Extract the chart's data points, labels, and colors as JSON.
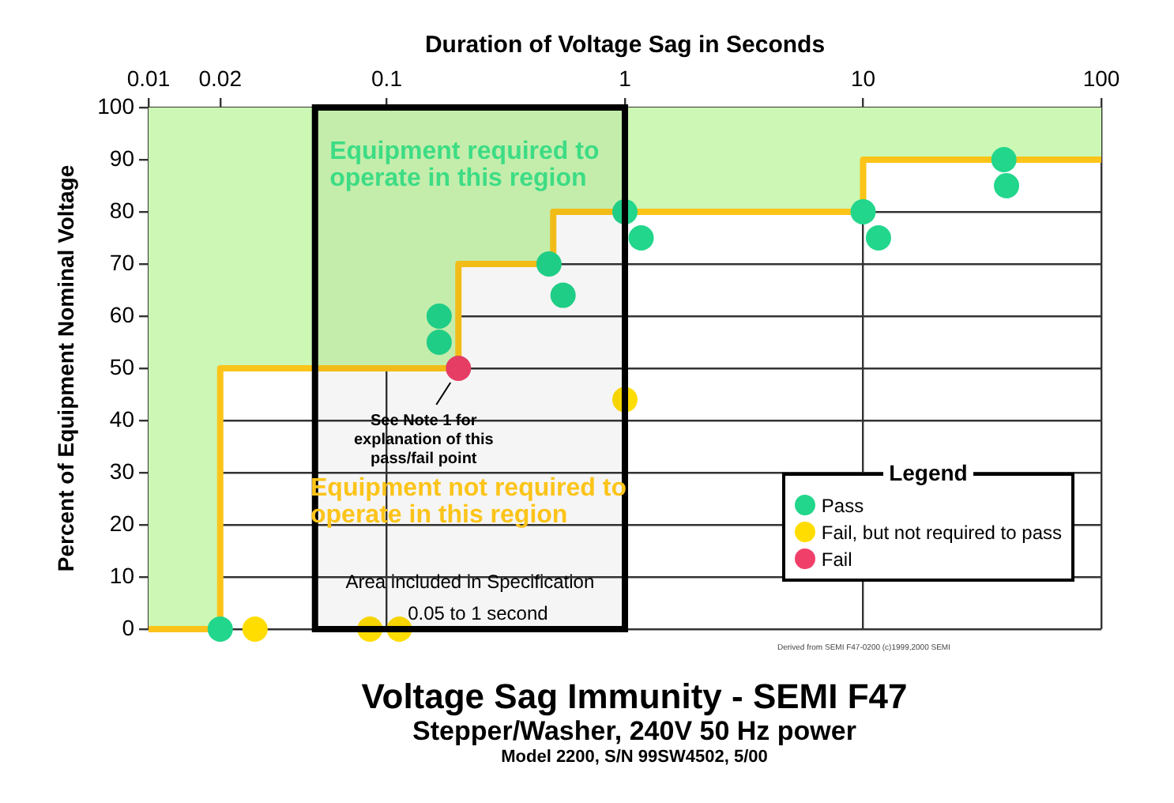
{
  "chart_data": {
    "type": "scatter",
    "title": "Voltage Sag Immunity - SEMI F47",
    "subtitle": "Stepper/Washer, 240V 50 Hz power\nModel 2200, S/N 99SW4502, 5/00",
    "xlabel": "Duration of Voltage Sag in Seconds",
    "ylabel": "Percent of Equipment Nominal Voltage",
    "legend_title": "Legend",
    "log": "x",
    "xlim": [
      0.01,
      100
    ],
    "xticks": [
      0.01,
      0.02,
      0.1,
      1,
      10,
      100
    ],
    "ylim": [
      0,
      100
    ],
    "yticks": [
      0,
      10,
      20,
      30,
      40,
      50,
      60,
      70,
      80,
      90,
      100
    ],
    "grid": true,
    "legend": "bottom right",
    "marker": "circle",
    "series": [
      {
        "type": "step",
        "color": "#fcc419",
        "marker": "none",
        "x": [
          0.01,
          0.02,
          0.2,
          0.5,
          10,
          100
        ],
        "values": [
          0,
          50,
          70,
          80,
          90,
          90
        ],
        "lower": [
          0,
          50,
          70,
          80,
          90,
          90
        ],
        "upper": [
          100,
          100,
          100,
          100,
          100,
          100
        ]
      },
      {
        "name": "Pass",
        "color": "#22d68c",
        "x": [
          0.02,
          0.166,
          0.166,
          0.48,
          0.55,
          1,
          1.17,
          10,
          11.6,
          39,
          40
        ],
        "values": [
          0,
          60,
          55,
          70,
          64,
          80,
          75,
          80,
          75,
          90,
          85
        ]
      },
      {
        "name": "Fail, but not required to pass",
        "color": "#ffdd00",
        "x": [
          0.028,
          0.085,
          0.113,
          1
        ],
        "values": [
          0,
          0,
          0,
          44
        ]
      },
      {
        "name": "Fail",
        "color": "#f0406a",
        "x": [
          0.2
        ],
        "values": [
          50
        ]
      }
    ],
    "bands": [
      {
        "axis": "x",
        "from": 0.05,
        "to": 1,
        "label": "Area included in Specification\n0.05 to 1 second",
        "color": "#000000"
      }
    ],
    "annotations": [
      "Equipment required to\noperate in this region",
      "Equipment not required to\noperate in this region",
      {
        "text": "See Note 1 for\nexplanation of this\npass/fail point",
        "x": 0.2,
        "y": 50
      },
      "Derived from SEMI F47-0200 (c)1999,2000 SEMI"
    ]
  }
}
